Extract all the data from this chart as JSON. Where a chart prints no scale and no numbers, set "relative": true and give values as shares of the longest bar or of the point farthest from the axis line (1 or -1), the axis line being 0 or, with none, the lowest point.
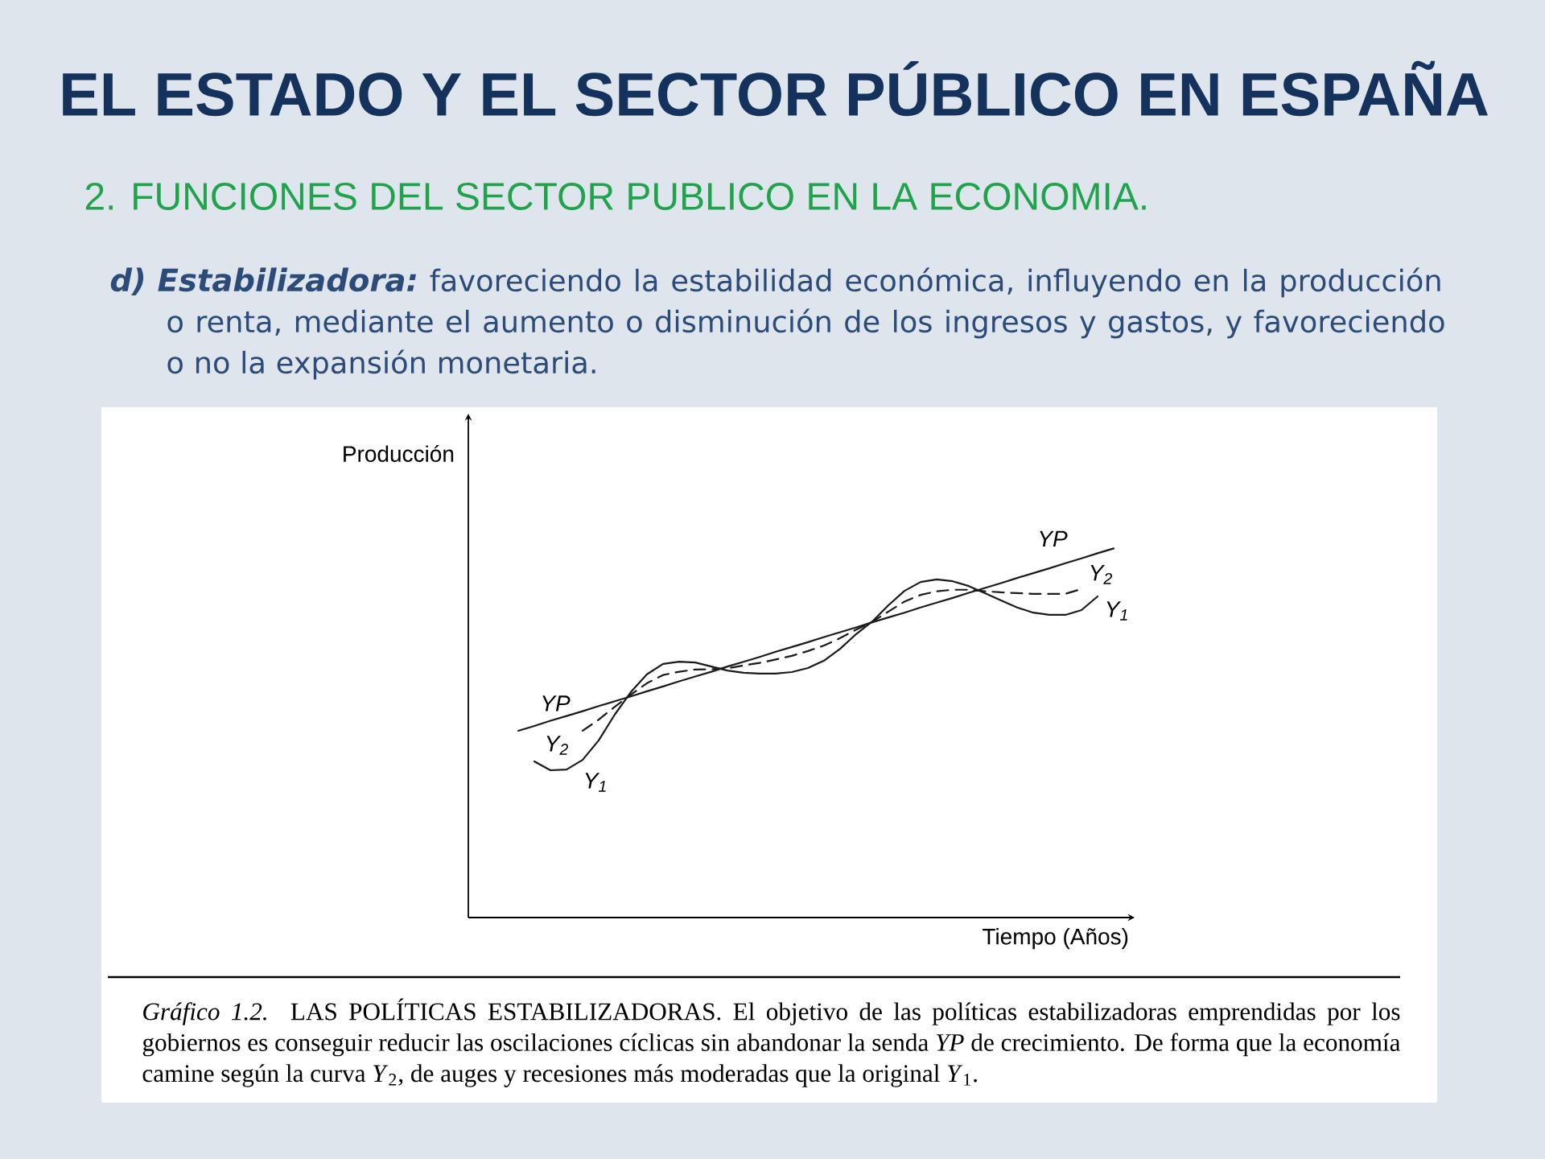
{
  "chart_data": {
    "type": "line",
    "title": "EL ESTADO Y EL SECTOR PÚBLICO EN ESPAÑA",
    "subtitle": "2. FUNCIONES DEL SECTOR PUBLICO EN LA ECONOMIA.",
    "xlabel": "Tiempo (Años)",
    "ylabel": "Producción",
    "annotations": [
      "d) Estabilizadora:",
      "favoreciendo la estabilidad económica, influyendo en la producción o renta, mediante el aumento o disminución de los ingresos y gastos, y favoreciendo o no la expansión monetaria.",
      "*Gráfico 1.2.* LAS POLÍTICAS ESTABILIZADORAS. El objetivo de las políticas estabilizadoras emprendidas por los gobiernos es conseguir reducir las oscilaciones cíclicas sin abandonar la senda *YP* de crecimiento. De forma que la economía camine según la curva *Y*$_{2}$, de auges y recesiones más moderadas que la original *Y*$_{1}$."
    ],
    "categories": [
      null,
      null,
      null,
      null,
      null,
      null,
      null,
      null,
      null,
      null,
      null,
      null,
      null,
      null,
      null,
      null,
      null,
      null,
      null,
      null,
      null,
      null,
      null,
      null,
      null,
      null,
      null,
      null,
      null,
      null,
      null,
      null,
      null,
      null,
      null,
      null,
      null,
      null
    ],
    "relative": true,
    "series": [
      {
        "name": "YP",
        "color": "#1a1a1a",
        "values": [
          0.506,
          0.519,
          0.533,
          0.546,
          0.559,
          0.573,
          0.586,
          0.599,
          0.613,
          0.626,
          0.64,
          0.653,
          0.666,
          0.68,
          0.693,
          0.706,
          0.72,
          0.733,
          0.746,
          0.76,
          0.773,
          0.786,
          0.8,
          0.813,
          0.826,
          0.84,
          0.853,
          0.866,
          0.88,
          0.893,
          0.906,
          0.92,
          0.933,
          0.946,
          0.96,
          0.973,
          0.987,
          1.0
        ]
      },
      {
        "name": "Y$_{2}$",
        "color": "#1a1a1a",
        "line_style": "dashed",
        "values": [
          null,
          null,
          null,
          null,
          0.506,
          0.536,
          0.571,
          0.604,
          0.635,
          0.657,
          0.666,
          0.672,
          0.673,
          0.675,
          0.683,
          0.69,
          0.699,
          0.709,
          0.722,
          0.737,
          0.757,
          0.78,
          0.801,
          0.829,
          0.856,
          0.874,
          0.884,
          0.888,
          0.888,
          0.884,
          0.881,
          0.879,
          0.877,
          0.877,
          0.877,
          0.89,
          null,
          null
        ]
      },
      {
        "name": "Y$_{1}$",
        "color": "#1a1a1a",
        "values": [
          null,
          0.423,
          0.399,
          0.401,
          0.427,
          0.48,
          0.55,
          0.611,
          0.659,
          0.687,
          0.693,
          0.691,
          0.68,
          0.669,
          0.663,
          0.661,
          0.661,
          0.665,
          0.676,
          0.696,
          0.728,
          0.768,
          0.802,
          0.846,
          0.885,
          0.909,
          0.916,
          0.911,
          0.898,
          0.879,
          0.859,
          0.84,
          0.826,
          0.82,
          0.82,
          0.833,
          0.87,
          null
        ]
      }
    ]
  }
}
